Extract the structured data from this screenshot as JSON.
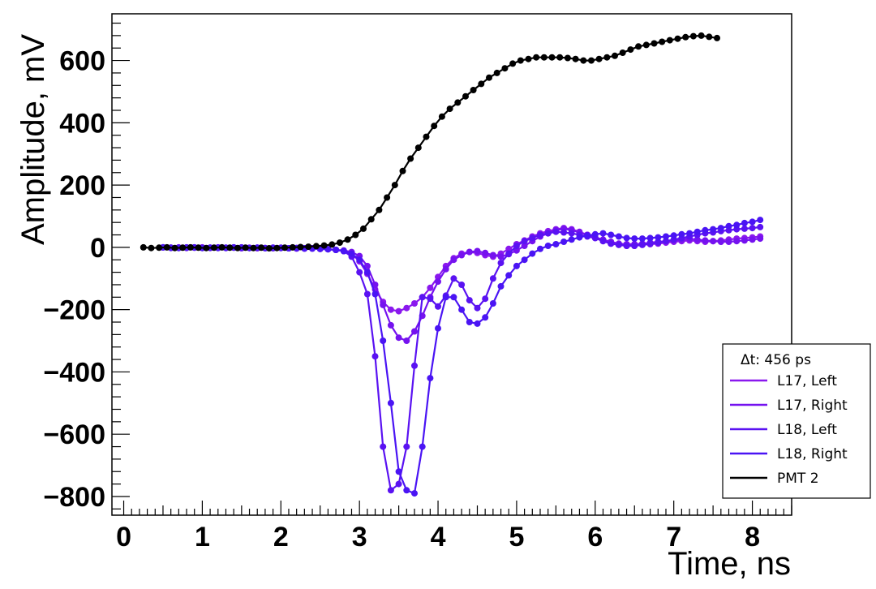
{
  "chart_data": {
    "type": "line",
    "title": "",
    "xlabel": "Time, ns",
    "ylabel": "Amplitude, mV",
    "xlim": [
      -0.15,
      8.5
    ],
    "ylim": [
      -860,
      750
    ],
    "xticks": [
      0,
      1,
      2,
      3,
      4,
      5,
      6,
      7,
      8
    ],
    "yticks": [
      -800,
      -600,
      -400,
      -200,
      0,
      200,
      400,
      600
    ],
    "legend_position": "bottom-right",
    "legend_header": "Δt: 456 ps",
    "grid": false,
    "series": [
      {
        "name": "L17, Left",
        "color": "#8a18ee",
        "x": [
          0.5,
          0.6,
          0.7,
          0.8,
          0.9,
          1.0,
          1.1,
          1.2,
          1.3,
          1.4,
          1.5,
          1.6,
          1.7,
          1.8,
          1.9,
          2.0,
          2.1,
          2.2,
          2.3,
          2.4,
          2.5,
          2.6,
          2.7,
          2.8,
          2.9,
          3.0,
          3.1,
          3.2,
          3.3,
          3.4,
          3.5,
          3.6,
          3.7,
          3.8,
          3.9,
          4.0,
          4.1,
          4.2,
          4.3,
          4.4,
          4.5,
          4.6,
          4.7,
          4.8,
          4.9,
          5.0,
          5.1,
          5.2,
          5.3,
          5.4,
          5.5,
          5.6,
          5.7,
          5.8,
          5.9,
          6.0,
          6.1,
          6.2,
          6.3,
          6.4,
          6.5,
          6.6,
          6.7,
          6.8,
          6.9,
          7.0,
          7.1,
          7.2,
          7.3,
          7.4,
          7.5,
          7.6,
          7.7,
          7.8,
          7.9,
          8.0,
          8.1
        ],
        "y": [
          0,
          -1,
          0,
          -2,
          -1,
          0,
          -1,
          -2,
          -1,
          0,
          -2,
          -1,
          -3,
          -2,
          -1,
          -2,
          -3,
          -2,
          -4,
          -3,
          -5,
          -6,
          -8,
          -12,
          -20,
          -45,
          -85,
          -135,
          -175,
          -200,
          -205,
          -195,
          -180,
          -160,
          -130,
          -95,
          -60,
          -35,
          -20,
          -15,
          -18,
          -25,
          -30,
          -20,
          -5,
          10,
          22,
          35,
          45,
          52,
          58,
          62,
          58,
          50,
          40,
          30,
          20,
          12,
          8,
          5,
          5,
          8,
          10,
          12,
          15,
          18,
          20,
          22,
          20,
          18,
          20,
          22,
          25,
          28,
          30,
          32,
          35
        ]
      },
      {
        "name": "L17, Right",
        "color": "#7512ef",
        "x": [
          0.5,
          0.6,
          0.7,
          0.8,
          0.9,
          1.0,
          1.1,
          1.2,
          1.3,
          1.4,
          1.5,
          1.6,
          1.7,
          1.8,
          1.9,
          2.0,
          2.1,
          2.2,
          2.3,
          2.4,
          2.5,
          2.6,
          2.7,
          2.8,
          2.9,
          3.0,
          3.1,
          3.2,
          3.3,
          3.4,
          3.5,
          3.6,
          3.7,
          3.8,
          3.9,
          4.0,
          4.1,
          4.2,
          4.3,
          4.4,
          4.5,
          4.6,
          4.7,
          4.8,
          4.9,
          5.0,
          5.1,
          5.2,
          5.3,
          5.4,
          5.5,
          5.6,
          5.7,
          5.8,
          5.9,
          6.0,
          6.1,
          6.2,
          6.3,
          6.4,
          6.5,
          6.6,
          6.7,
          6.8,
          6.9,
          7.0,
          7.1,
          7.2,
          7.3,
          7.4,
          7.5,
          7.6,
          7.7,
          7.8,
          7.9,
          8.0,
          8.1
        ],
        "y": [
          0,
          -1,
          -2,
          -1,
          0,
          -1,
          -2,
          -1,
          -2,
          -1,
          -3,
          -2,
          -1,
          -2,
          -3,
          -2,
          -3,
          -4,
          -3,
          -4,
          -5,
          -6,
          -8,
          -10,
          -15,
          -28,
          -60,
          -120,
          -185,
          -250,
          -290,
          -300,
          -270,
          -220,
          -160,
          -110,
          -70,
          -40,
          -25,
          -15,
          -12,
          -18,
          -25,
          -30,
          -22,
          -10,
          5,
          20,
          35,
          45,
          55,
          60,
          55,
          48,
          40,
          32,
          25,
          18,
          12,
          10,
          10,
          12,
          15,
          18,
          20,
          22,
          25,
          28,
          25,
          22,
          20,
          18,
          18,
          20,
          22,
          25,
          28
        ]
      },
      {
        "name": "L18,  Left",
        "color": "#5a12f2",
        "x": [
          0.5,
          0.6,
          0.7,
          0.8,
          0.9,
          1.0,
          1.1,
          1.2,
          1.3,
          1.4,
          1.5,
          1.6,
          1.7,
          1.8,
          1.9,
          2.0,
          2.1,
          2.2,
          2.3,
          2.4,
          2.5,
          2.6,
          2.7,
          2.8,
          2.9,
          3.0,
          3.1,
          3.2,
          3.3,
          3.4,
          3.5,
          3.6,
          3.7,
          3.8,
          3.9,
          4.0,
          4.1,
          4.2,
          4.3,
          4.4,
          4.5,
          4.6,
          4.7,
          4.8,
          4.9,
          5.0,
          5.1,
          5.2,
          5.3,
          5.4,
          5.5,
          5.6,
          5.7,
          5.8,
          5.9,
          6.0,
          6.1,
          6.2,
          6.3,
          6.4,
          6.5,
          6.6,
          6.7,
          6.8,
          6.9,
          7.0,
          7.1,
          7.2,
          7.3,
          7.4,
          7.5,
          7.6,
          7.7,
          7.8,
          7.9,
          8.0,
          8.1
        ],
        "y": [
          0,
          -2,
          -1,
          0,
          -1,
          -2,
          -1,
          0,
          -2,
          -1,
          0,
          -2,
          -1,
          -3,
          -2,
          -1,
          -3,
          -2,
          -4,
          -3,
          -5,
          -6,
          -8,
          -12,
          -30,
          -80,
          -150,
          -350,
          -640,
          -780,
          -760,
          -640,
          -380,
          -160,
          -165,
          -190,
          -155,
          -100,
          -120,
          -170,
          -195,
          -165,
          -100,
          -50,
          -20,
          5,
          20,
          30,
          40,
          45,
          50,
          48,
          45,
          40,
          35,
          30,
          20,
          12,
          8,
          5,
          5,
          8,
          12,
          15,
          20,
          25,
          30,
          35,
          40,
          45,
          48,
          52,
          55,
          58,
          60,
          62,
          65
        ]
      },
      {
        "name": "L18, Right",
        "color": "#4a14f4",
        "x": [
          0.5,
          0.6,
          0.7,
          0.8,
          0.9,
          1.0,
          1.1,
          1.2,
          1.3,
          1.4,
          1.5,
          1.6,
          1.7,
          1.8,
          1.9,
          2.0,
          2.1,
          2.2,
          2.3,
          2.4,
          2.5,
          2.6,
          2.7,
          2.8,
          2.9,
          3.0,
          3.1,
          3.2,
          3.3,
          3.4,
          3.5,
          3.6,
          3.7,
          3.8,
          3.9,
          4.0,
          4.1,
          4.2,
          4.3,
          4.4,
          4.5,
          4.6,
          4.7,
          4.8,
          4.9,
          5.0,
          5.1,
          5.2,
          5.3,
          5.4,
          5.5,
          5.6,
          5.7,
          5.8,
          5.9,
          6.0,
          6.1,
          6.2,
          6.3,
          6.4,
          6.5,
          6.6,
          6.7,
          6.8,
          6.9,
          7.0,
          7.1,
          7.2,
          7.3,
          7.4,
          7.5,
          7.6,
          7.7,
          7.8,
          7.9,
          8.0,
          8.1
        ],
        "y": [
          0,
          -1,
          -2,
          -1,
          0,
          -2,
          -1,
          -2,
          -1,
          0,
          -1,
          -2,
          -1,
          -2,
          -1,
          -2,
          -3,
          -2,
          -3,
          -4,
          -5,
          -6,
          -8,
          -12,
          -20,
          -40,
          -80,
          -150,
          -300,
          -500,
          -720,
          -780,
          -790,
          -640,
          -420,
          -260,
          -160,
          -160,
          -200,
          -240,
          -245,
          -225,
          -180,
          -125,
          -90,
          -60,
          -40,
          -20,
          -5,
          5,
          10,
          18,
          25,
          32,
          38,
          42,
          45,
          40,
          35,
          30,
          28,
          28,
          30,
          32,
          35,
          38,
          42,
          45,
          50,
          55,
          58,
          62,
          68,
          72,
          78,
          82,
          88
        ]
      },
      {
        "name": "PMT 2",
        "color": "#000000",
        "x": [
          0.25,
          0.35,
          0.45,
          0.55,
          0.65,
          0.75,
          0.85,
          0.95,
          1.05,
          1.15,
          1.25,
          1.35,
          1.45,
          1.55,
          1.65,
          1.75,
          1.85,
          1.95,
          2.05,
          2.15,
          2.25,
          2.35,
          2.45,
          2.55,
          2.65,
          2.75,
          2.85,
          2.95,
          3.05,
          3.15,
          3.25,
          3.35,
          3.45,
          3.55,
          3.65,
          3.75,
          3.85,
          3.95,
          4.05,
          4.15,
          4.25,
          4.35,
          4.45,
          4.55,
          4.65,
          4.75,
          4.85,
          4.95,
          5.05,
          5.15,
          5.25,
          5.35,
          5.45,
          5.55,
          5.65,
          5.75,
          5.85,
          5.95,
          6.05,
          6.15,
          6.25,
          6.35,
          6.45,
          6.55,
          6.65,
          6.75,
          6.85,
          6.95,
          7.05,
          7.15,
          7.25,
          7.35,
          7.45,
          7.55
        ],
        "y": [
          0,
          -2,
          -1,
          0,
          -2,
          -1,
          0,
          -1,
          -2,
          -1,
          0,
          -1,
          -2,
          -1,
          -2,
          -1,
          -3,
          -2,
          -1,
          0,
          1,
          2,
          4,
          6,
          9,
          15,
          25,
          40,
          60,
          90,
          120,
          160,
          200,
          245,
          285,
          320,
          355,
          390,
          420,
          445,
          465,
          485,
          505,
          525,
          545,
          560,
          575,
          590,
          600,
          605,
          610,
          610,
          610,
          610,
          608,
          605,
          600,
          600,
          605,
          610,
          615,
          625,
          635,
          645,
          650,
          655,
          660,
          665,
          670,
          675,
          678,
          680,
          676,
          672
        ]
      }
    ]
  }
}
